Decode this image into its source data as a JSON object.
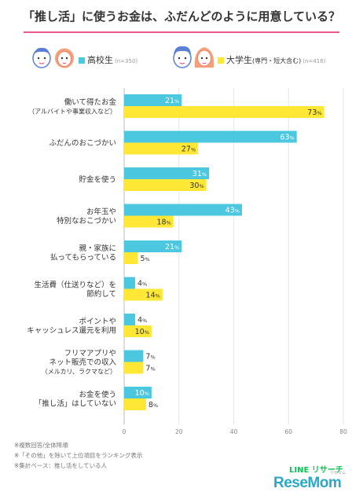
{
  "title": "「推し活」に使うお金は、ふだんどのように用意している？",
  "legend": {
    "high_school": {
      "label": "高校生",
      "n": "(n=350)",
      "color": "#4cc7e0"
    },
    "university": {
      "label": "大学生",
      "label_sub": "(専門・短大含む)",
      "n": "(n=416)",
      "color": "#ffe735"
    }
  },
  "icons": [
    "boy-face-icon",
    "girl-face-icon",
    "man-face-icon",
    "woman-face-icon"
  ],
  "notes": [
    "※複数回答/全体降順",
    "※「その他」を除いて上位項目をランキング表示",
    "※集計ベース：推し活をしている人"
  ],
  "brand": {
    "line": "LINE リサーチ",
    "resemom": "ReseMom",
    "resemom_sub": "リセマム"
  },
  "value_suffix": "%",
  "chart_data": {
    "type": "bar",
    "orientation": "horizontal",
    "title": "「推し活」に使うお金は、ふだんどのように用意している？",
    "categories": [
      [
        "働いて得たお金",
        "（アルバイトや事業収入など）"
      ],
      [
        "ふだんのおこづかい"
      ],
      [
        "貯金を使う"
      ],
      [
        "お年玉や",
        "特別なおこづかい"
      ],
      [
        "親・家族に",
        "払ってもらっている"
      ],
      [
        "生活費（仕送りなど）を",
        "節約して"
      ],
      [
        "ポイントや",
        "キャッシュレス還元を利用"
      ],
      [
        "フリマアプリや",
        "ネット販売での収入",
        "（メルカリ、ラクマなど）"
      ],
      [
        "お金を使う",
        "「推し活」はしていない"
      ]
    ],
    "series": [
      {
        "name": "高校生",
        "values": [
          21,
          63,
          31,
          43,
          21,
          4,
          4,
          7,
          10
        ],
        "color": "#4cc7e0"
      },
      {
        "name": "大学生",
        "values": [
          73,
          27,
          30,
          18,
          5,
          14,
          10,
          7,
          8
        ],
        "color": "#ffe735"
      }
    ],
    "xlim": [
      0,
      80
    ],
    "xticks": [
      0,
      20,
      40,
      60,
      80
    ],
    "grid": true
  }
}
